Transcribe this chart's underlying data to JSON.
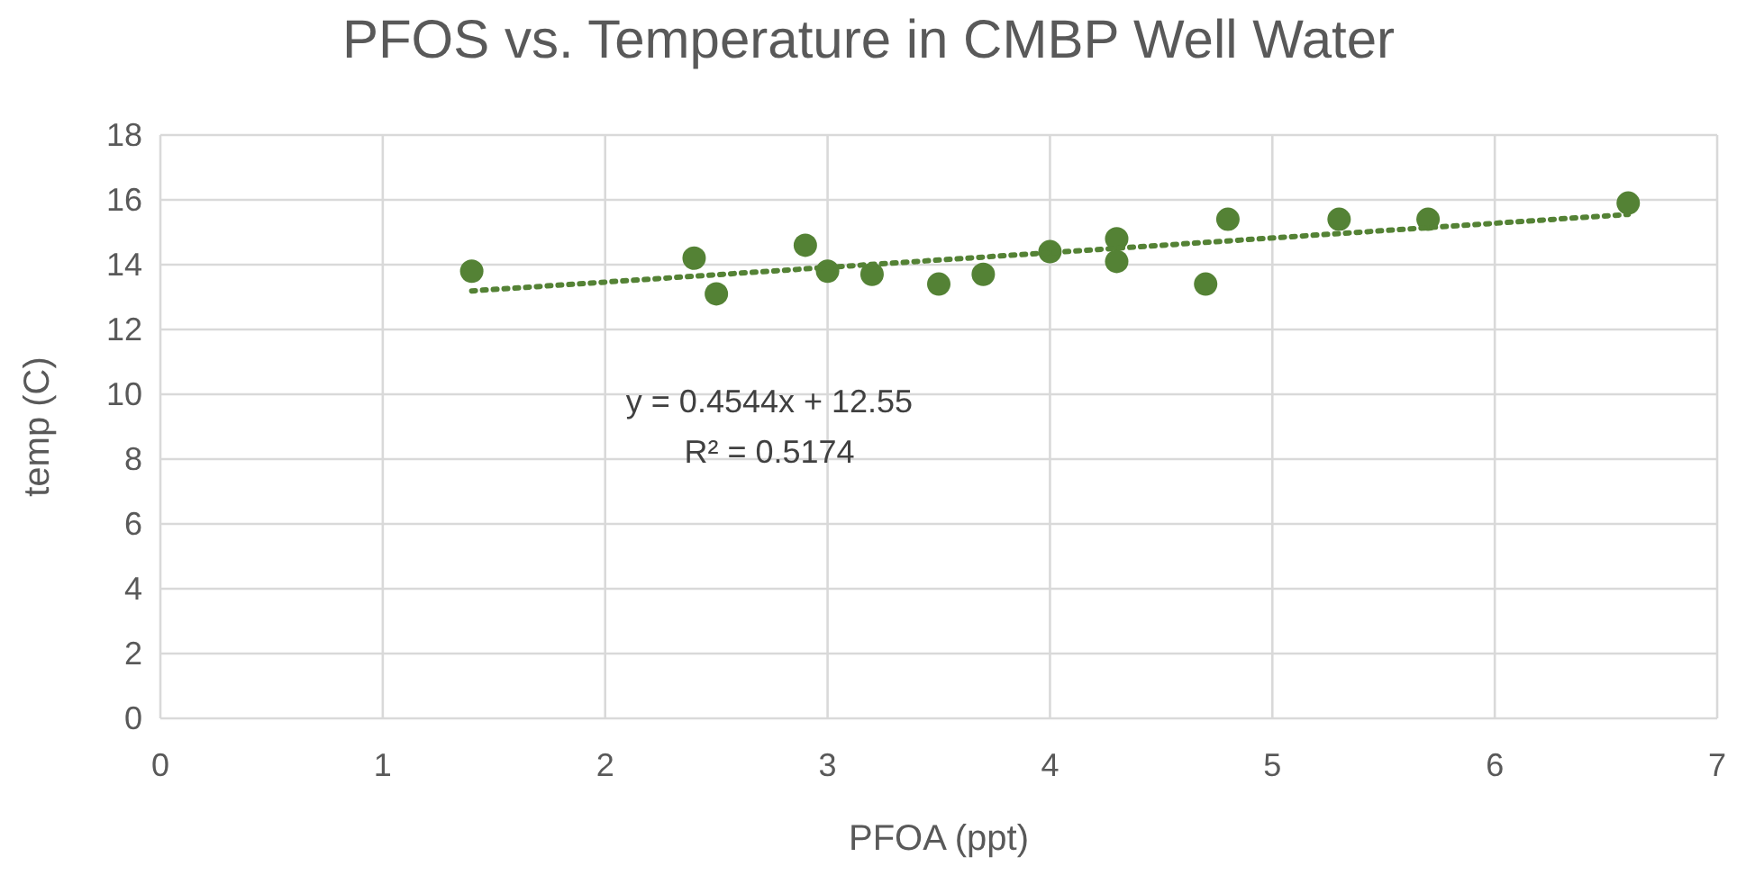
{
  "chart_data": {
    "type": "scatter",
    "title": "PFOS vs. Temperature in CMBP Well Water",
    "xlabel": "PFOA (ppt)",
    "ylabel": "temp (C)",
    "annotations": [
      "y = 0.4544x + 12.55",
      "R² = 0.5174"
    ],
    "xlim": [
      0,
      7
    ],
    "xticks": [
      0,
      1,
      2,
      3,
      4,
      5,
      6,
      7
    ],
    "ylim": [
      0,
      18
    ],
    "yticks": [
      0,
      2,
      4,
      6,
      8,
      10,
      12,
      14,
      16,
      18
    ],
    "grid": true,
    "series": [
      {
        "marker": "circle",
        "color": "#548235",
        "x": [
          1.4,
          2.4,
          2.5,
          2.9,
          3.0,
          3.2,
          3.5,
          3.7,
          4.0,
          4.3,
          4.3,
          4.7,
          4.8,
          5.3,
          5.7,
          6.6
        ],
        "values": [
          13.8,
          14.2,
          13.1,
          14.6,
          13.8,
          13.7,
          13.4,
          13.7,
          14.4,
          14.8,
          14.1,
          13.4,
          15.4,
          15.4,
          15.4,
          15.9
        ]
      },
      {
        "type": "line",
        "line_style": "dotted",
        "marker": "none",
        "color": "#548235",
        "x": [
          1.4,
          6.6
        ],
        "values": [
          13.19,
          15.55
        ]
      }
    ]
  }
}
